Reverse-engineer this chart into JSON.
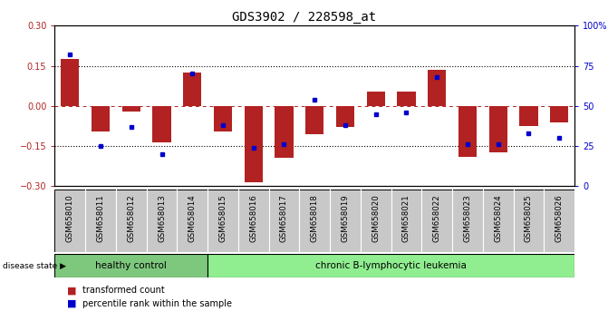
{
  "title": "GDS3902 / 228598_at",
  "samples": [
    "GSM658010",
    "GSM658011",
    "GSM658012",
    "GSM658013",
    "GSM658014",
    "GSM658015",
    "GSM658016",
    "GSM658017",
    "GSM658018",
    "GSM658019",
    "GSM658020",
    "GSM658021",
    "GSM658022",
    "GSM658023",
    "GSM658024",
    "GSM658025",
    "GSM658026"
  ],
  "bar_values": [
    0.175,
    -0.095,
    -0.02,
    -0.135,
    0.125,
    -0.095,
    -0.285,
    -0.195,
    -0.105,
    -0.08,
    0.055,
    0.055,
    0.135,
    -0.19,
    -0.175,
    -0.075,
    -0.06
  ],
  "percentile_values": [
    82,
    25,
    37,
    20,
    70,
    38,
    24,
    26,
    54,
    38,
    45,
    46,
    68,
    26,
    26,
    33,
    30
  ],
  "healthy_control_count": 5,
  "disease_label_healthy": "healthy control",
  "disease_label_chronic": "chronic B-lymphocytic leukemia",
  "disease_state_label": "disease state",
  "legend_bar": "transformed count",
  "legend_dot": "percentile rank within the sample",
  "bar_color": "#B22222",
  "dot_color": "#0000CD",
  "healthy_bg": "#7EC87E",
  "chronic_bg": "#90EE90",
  "label_bg": "#C8C8C8",
  "ylim_left": [
    -0.3,
    0.3
  ],
  "ylim_right": [
    0,
    100
  ],
  "yticks_left": [
    -0.3,
    -0.15,
    0.0,
    0.15,
    0.3
  ],
  "yticks_right": [
    0,
    25,
    50,
    75,
    100
  ],
  "hlines_dotted": [
    -0.15,
    0.15
  ],
  "hline_dashed": 0.0,
  "title_fontsize": 10,
  "tick_fontsize": 7,
  "label_fontsize": 7
}
